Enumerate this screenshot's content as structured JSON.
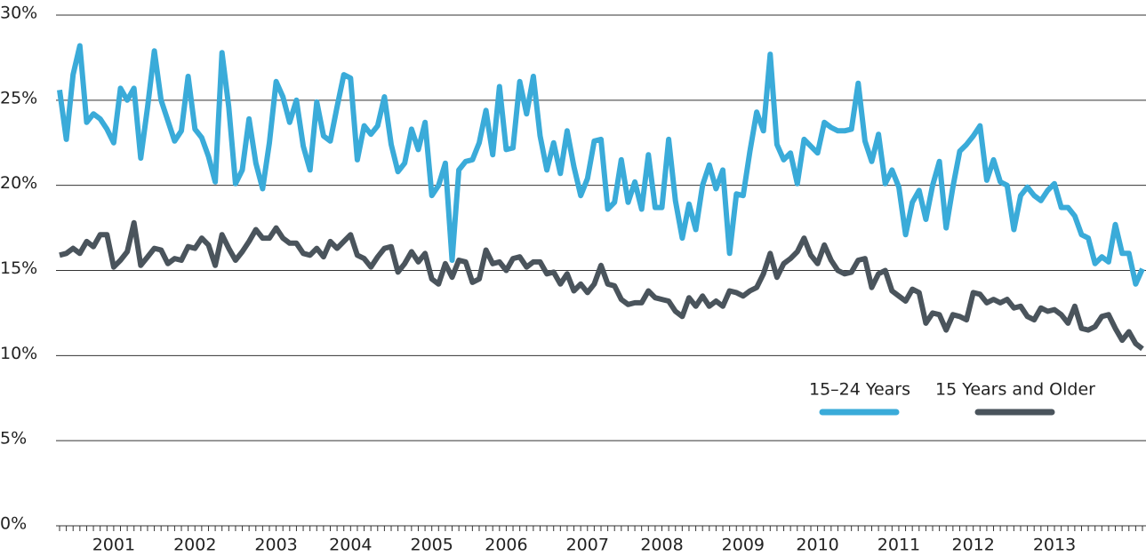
{
  "chart_data": {
    "type": "line",
    "categories": [
      null,
      null,
      null,
      null,
      null,
      null,
      null,
      null,
      "2001",
      null,
      null,
      null,
      null,
      null,
      null,
      null,
      null,
      null,
      null,
      null,
      "2002",
      null,
      null,
      null,
      null,
      null,
      null,
      null,
      null,
      null,
      null,
      null,
      "2003",
      null,
      null,
      null,
      null,
      null,
      null,
      null,
      null,
      null,
      null,
      "2004",
      null,
      null,
      null,
      null,
      null,
      null,
      null,
      null,
      null,
      null,
      null,
      "2005",
      null,
      null,
      null,
      null,
      null,
      null,
      null,
      null,
      null,
      null,
      "2006",
      null,
      null,
      null,
      null,
      null,
      null,
      null,
      null,
      null,
      null,
      null,
      "2007",
      null,
      null,
      null,
      null,
      null,
      null,
      null,
      null,
      null,
      null,
      "2008",
      null,
      null,
      null,
      null,
      null,
      null,
      null,
      null,
      null,
      null,
      null,
      "2009",
      null,
      null,
      null,
      null,
      null,
      null,
      null,
      null,
      null,
      null,
      "2010",
      null,
      null,
      null,
      null,
      null,
      null,
      null,
      null,
      null,
      null,
      null,
      "2011",
      null,
      null,
      null,
      null,
      null,
      null,
      null,
      null,
      null,
      null,
      "2012",
      null,
      null,
      null,
      null,
      null,
      null,
      null,
      null,
      null,
      null,
      null,
      "2013",
      null,
      null,
      null,
      null,
      null,
      null,
      null,
      null,
      null,
      null,
      null,
      null,
      null
    ],
    "series": [
      {
        "name": "15–24 Years",
        "color": "#3aabd9",
        "values": [
          25.6,
          22.7,
          26.5,
          28.2,
          23.7,
          24.2,
          23.9,
          23.3,
          22.5,
          25.7,
          25.0,
          25.7,
          21.6,
          24.6,
          27.9,
          25.0,
          23.8,
          22.6,
          23.2,
          26.4,
          23.3,
          22.8,
          21.7,
          20.2,
          27.8,
          24.6,
          20.1,
          20.9,
          23.9,
          21.3,
          19.8,
          22.5,
          26.1,
          25.2,
          23.7,
          25.0,
          22.3,
          20.9,
          24.9,
          22.9,
          22.6,
          24.6,
          26.5,
          26.3,
          21.5,
          23.5,
          23.0,
          23.5,
          25.2,
          22.4,
          20.8,
          21.3,
          23.3,
          22.1,
          23.7,
          19.4,
          20.0,
          21.3,
          15.6,
          20.9,
          21.4,
          21.5,
          22.5,
          24.4,
          21.8,
          25.8,
          22.1,
          22.2,
          26.1,
          24.2,
          26.4,
          22.9,
          20.9,
          22.5,
          20.7,
          23.2,
          21.1,
          19.4,
          20.4,
          22.6,
          22.7,
          18.6,
          19.0,
          21.5,
          19.0,
          20.2,
          18.6,
          21.8,
          18.7,
          18.7,
          22.7,
          19.1,
          16.9,
          18.9,
          17.4,
          20.0,
          21.2,
          19.8,
          20.9,
          16.0,
          19.5,
          19.4,
          22.0,
          24.3,
          23.2,
          27.7,
          22.4,
          21.5,
          21.9,
          20.1,
          22.7,
          22.3,
          21.9,
          23.7,
          23.4,
          23.2,
          23.2,
          23.3,
          26.0,
          22.6,
          21.4,
          23.0,
          20.1,
          20.9,
          19.9,
          17.1,
          19.0,
          19.7,
          18.0,
          20.0,
          21.4,
          17.5,
          19.9,
          22.0,
          22.4,
          22.9,
          23.5,
          20.3,
          21.5,
          20.2,
          20.0,
          17.4,
          19.4,
          19.9,
          19.4,
          19.1,
          19.7,
          20.1,
          18.7,
          18.7,
          18.2,
          17.1,
          16.9,
          15.4,
          15.8,
          15.5,
          17.7,
          16.0,
          16.0,
          14.2,
          15.1
        ]
      },
      {
        "name": "15 Years and Older",
        "color": "#4a545c",
        "values": [
          15.9,
          16.0,
          16.3,
          16.0,
          16.7,
          16.4,
          17.1,
          17.1,
          15.2,
          15.6,
          16.1,
          17.8,
          15.3,
          15.8,
          16.3,
          16.2,
          15.4,
          15.7,
          15.6,
          16.4,
          16.3,
          16.9,
          16.5,
          15.3,
          17.1,
          16.3,
          15.6,
          16.1,
          16.7,
          17.4,
          16.9,
          16.9,
          17.5,
          16.9,
          16.6,
          16.6,
          16.0,
          15.9,
          16.3,
          15.8,
          16.7,
          16.3,
          16.7,
          17.1,
          15.9,
          15.7,
          15.2,
          15.8,
          16.3,
          16.4,
          14.9,
          15.4,
          16.1,
          15.5,
          16.0,
          14.5,
          14.2,
          15.4,
          14.6,
          15.6,
          15.5,
          14.3,
          14.5,
          16.2,
          15.4,
          15.5,
          15.0,
          15.7,
          15.8,
          15.2,
          15.5,
          15.5,
          14.8,
          14.9,
          14.2,
          14.8,
          13.8,
          14.2,
          13.7,
          14.2,
          15.3,
          14.2,
          14.1,
          13.3,
          13.0,
          13.1,
          13.1,
          13.8,
          13.4,
          13.3,
          13.2,
          12.6,
          12.3,
          13.4,
          12.9,
          13.5,
          12.9,
          13.2,
          12.9,
          13.8,
          13.7,
          13.5,
          13.8,
          14.0,
          14.8,
          16.0,
          14.6,
          15.4,
          15.7,
          16.1,
          16.9,
          15.9,
          15.4,
          16.5,
          15.6,
          15.0,
          14.8,
          14.9,
          15.6,
          15.7,
          14.0,
          14.8,
          15.0,
          13.8,
          13.5,
          13.2,
          13.9,
          13.7,
          11.9,
          12.5,
          12.4,
          11.5,
          12.4,
          12.3,
          12.1,
          13.7,
          13.6,
          13.1,
          13.3,
          13.1,
          13.3,
          12.8,
          12.9,
          12.3,
          12.1,
          12.8,
          12.6,
          12.7,
          12.4,
          11.9,
          12.9,
          11.6,
          11.5,
          11.7,
          12.3,
          12.4,
          11.6,
          10.9,
          11.4,
          10.7,
          10.4
        ]
      }
    ],
    "ylim": [
      0,
      30
    ],
    "yticks": [
      {
        "value": 0,
        "label": "0%"
      },
      {
        "value": 5,
        "label": "5%"
      },
      {
        "value": 10,
        "label": "10%"
      },
      {
        "value": 15,
        "label": "15%"
      },
      {
        "value": 20,
        "label": "20%"
      },
      {
        "value": 25,
        "label": "25%"
      },
      {
        "value": 30,
        "label": "30%"
      }
    ],
    "grid": true,
    "legend": "right"
  }
}
